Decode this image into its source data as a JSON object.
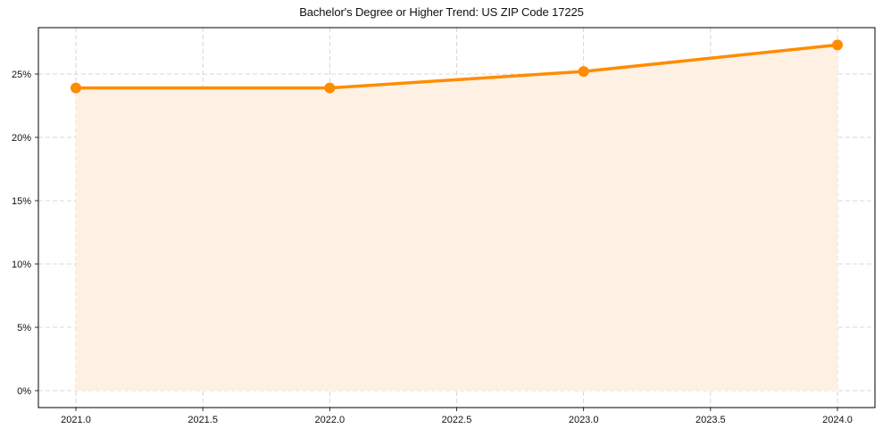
{
  "chart_data": {
    "type": "line",
    "title": "Bachelor's Degree or Higher Trend: US ZIP Code 17225",
    "xlabel": "",
    "ylabel": "",
    "x": [
      2021.0,
      2022.0,
      2023.0,
      2024.0
    ],
    "series": [
      {
        "name": "Bachelor's Degree or Higher",
        "values": [
          23.9,
          23.9,
          25.2,
          27.3
        ],
        "unit": "%",
        "color": "#ff8c00",
        "fill_color": "#fef1e4",
        "marker": "circle",
        "filled_area": true
      }
    ],
    "x_ticks": [
      "2021.0",
      "2021.5",
      "2022.0",
      "2022.5",
      "2023.0",
      "2023.5",
      "2024.0"
    ],
    "y_ticks": [
      "0%",
      "5%",
      "10%",
      "15%",
      "20%",
      "25%"
    ],
    "xlim": [
      2020.85,
      2024.15
    ],
    "ylim": [
      -1.35,
      28.6
    ],
    "grid": true,
    "grid_style": "dashed",
    "legend": null
  }
}
